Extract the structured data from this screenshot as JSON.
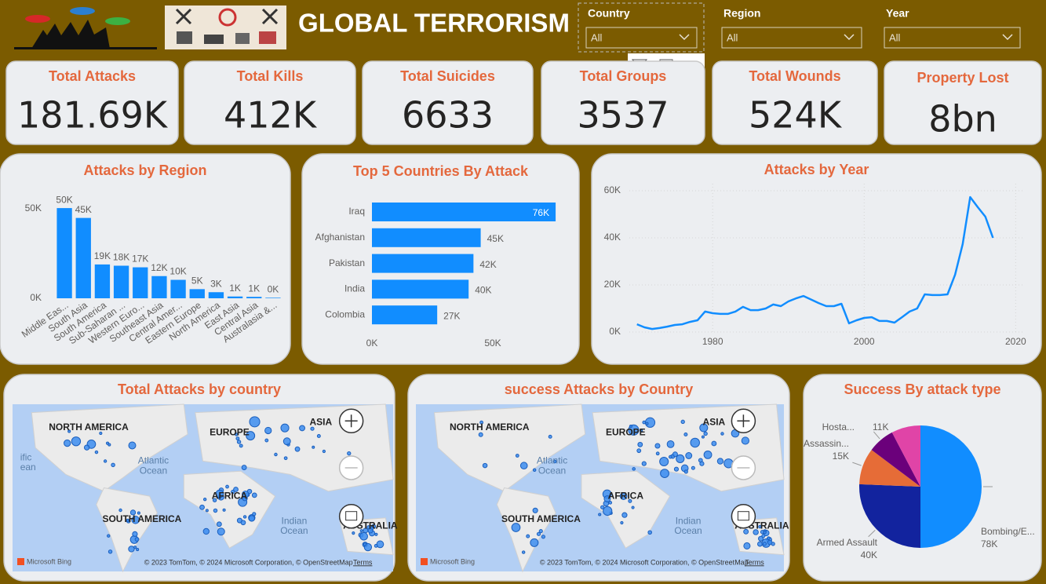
{
  "header": {
    "title": "GLOBAL TERRORISM"
  },
  "slicers": [
    {
      "label": "Country",
      "value": "All"
    },
    {
      "label": "Region",
      "value": "All"
    },
    {
      "label": "Year",
      "value": "All"
    }
  ],
  "kpis": [
    {
      "label": "Total Attacks",
      "value": "181.69K"
    },
    {
      "label": "Total Kills",
      "value": "412K"
    },
    {
      "label": "Total Suicides",
      "value": "6633"
    },
    {
      "label": "Total Groups",
      "value": "3537"
    },
    {
      "label": "Total Wounds",
      "value": "524K"
    },
    {
      "label": "Property Lost",
      "value": "8bn"
    }
  ],
  "chart_data": [
    {
      "type": "bar",
      "title": "Attacks by Region",
      "color": "#118dff",
      "categories": [
        "Middle Eas...",
        "South Asia",
        "South America",
        "Sub-Saharan ...",
        "Western Euro...",
        "Southeast Asia",
        "Central Amer...",
        "Eastern Europe",
        "North America",
        "East Asia",
        "Central Asia",
        "Australasia &..."
      ],
      "values": [
        50400,
        44900,
        18900,
        18200,
        17300,
        12400,
        10300,
        5100,
        3400,
        1000,
        800,
        300
      ],
      "value_labels": [
        "50K",
        "45K",
        "19K",
        "18K",
        "17K",
        "12K",
        "10K",
        "5K",
        "3K",
        "1K",
        "1K",
        "0K"
      ],
      "ylim": [
        0,
        56000
      ],
      "yticks": [
        {
          "value": 0,
          "label": "0K"
        },
        {
          "value": 50000,
          "label": "50K"
        }
      ]
    },
    {
      "type": "bar",
      "horizontal": true,
      "title": "Top 5 Countries By Attack",
      "color": "#118dff",
      "categories": [
        "Iraq",
        "Afghanistan",
        "Pakistan",
        "India",
        "Colombia"
      ],
      "values": [
        76000,
        45000,
        42000,
        40000,
        27000
      ],
      "value_labels": [
        "76K",
        "45K",
        "42K",
        "40K",
        "27K"
      ],
      "xlim": [
        0,
        77000
      ],
      "xticks": [
        {
          "value": 0,
          "label": "0K"
        },
        {
          "value": 50000,
          "label": "50K"
        }
      ]
    },
    {
      "type": "line",
      "title": "Attacks by Year",
      "grid": true,
      "x": [
        1970,
        1971,
        1972,
        1973,
        1974,
        1975,
        1976,
        1977,
        1978,
        1979,
        1980,
        1981,
        1982,
        1983,
        1984,
        1985,
        1986,
        1987,
        1988,
        1989,
        1990,
        1991,
        1992,
        1994,
        1995,
        1996,
        1997,
        1998,
        1999,
        2000,
        2001,
        2002,
        2003,
        2004,
        2005,
        2006,
        2007,
        2008,
        2009,
        2010,
        2011,
        2012,
        2013,
        2014,
        2015,
        2016,
        2017
      ],
      "series": [
        {
          "color": "#118dff",
          "values": [
            3300,
            2000,
            1300,
            1700,
            2300,
            3000,
            3300,
            4300,
            5000,
            8700,
            8000,
            7700,
            7700,
            8700,
            10700,
            9300,
            9300,
            10000,
            11700,
            11000,
            13000,
            14300,
            15300,
            12300,
            11000,
            11000,
            12000,
            3700,
            5000,
            6000,
            6300,
            4700,
            4700,
            4000,
            6300,
            8700,
            10000,
            16000,
            15700,
            15700,
            16000,
            24300,
            37300,
            57300,
            53000,
            49000,
            40000
          ]
        }
      ],
      "xlim": [
        1969,
        2021
      ],
      "xticks": [
        1980,
        2000,
        2020
      ],
      "ylim": [
        0,
        63000
      ],
      "yticks": [
        {
          "value": 0,
          "label": "0K"
        },
        {
          "value": 20000,
          "label": "20K"
        },
        {
          "value": 40000,
          "label": "40K"
        },
        {
          "value": 60000,
          "label": "60K"
        }
      ]
    },
    {
      "type": "pie",
      "title": "Success By attack type",
      "categories": [
        "Bombing/E...",
        "Armed Assault",
        "Assassin...",
        "Hosta...",
        null
      ],
      "values": [
        78000,
        40000,
        15000,
        11000,
        12000
      ],
      "value_labels": [
        "78K",
        "40K",
        "15K",
        "11K",
        null
      ],
      "colors": [
        "#118dff",
        "#12239e",
        "#e66c37",
        "#6b007b",
        "#e044a7"
      ]
    }
  ],
  "maps": [
    {
      "title": "Total Attacks by country",
      "labels": [
        "NORTH AMERICA",
        "EUROPE",
        "ASIA",
        "Atlantic",
        "Ocean",
        "AFRICA",
        "SOUTH AMERICA",
        "Indian",
        "Ocean",
        "AUSTRALIA",
        "ific",
        "ean"
      ]
    },
    {
      "title": "success Attacks by Country",
      "labels": [
        "NORTH AMERICA",
        "EUROPE",
        "ASIA",
        "Atlantic",
        "Ocean",
        "AFRICA",
        "SOUTH AMERICA",
        "Indian",
        "Ocean",
        "AUSTRALIA"
      ]
    }
  ],
  "map_attribution": {
    "provider": "Microsoft Bing",
    "credits": "© 2023 TomTom, © 2024 Microsoft Corporation, © OpenStreetMap",
    "terms": "Terms"
  }
}
